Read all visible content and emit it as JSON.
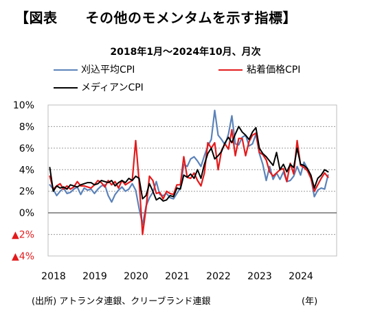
{
  "header": {
    "title": "【図表　　その他のモメンタムを示す指標】",
    "subtitle": "2018年1月～2024年10月、月次"
  },
  "footer": {
    "source": "(出所) アトランタ連銀、クリーブランド連銀",
    "unit": "(年)"
  },
  "colors": {
    "trimmed": "#5b82b9",
    "sticky": "#e31a1c",
    "median": "#000000",
    "negative_label": "#e31a1c",
    "grid": "#9a9a9a",
    "zero": "#555555"
  },
  "chart_data": {
    "type": "line",
    "title": "",
    "xlabel": "(年)",
    "ylabel": "",
    "ylim": [
      -4,
      10
    ],
    "yticks": [
      -4,
      -2,
      0,
      2,
      4,
      6,
      8,
      10
    ],
    "ytick_labels": [
      "▲4%",
      "▲2%",
      "0%",
      "2%",
      "4%",
      "6%",
      "8%",
      "10%"
    ],
    "xtick_labels": [
      "2018",
      "2019",
      "2020",
      "2021",
      "2022",
      "2023",
      "2024"
    ],
    "x_start": "2018-01",
    "x_end": "2024-10",
    "grid": true,
    "legend_position": "top",
    "series": [
      {
        "name": "刈込平均CPI",
        "values": [
          2.6,
          2.2,
          1.6,
          2.0,
          2.3,
          1.8,
          1.9,
          2.2,
          2.4,
          1.7,
          2.3,
          2.1,
          2.2,
          1.8,
          2.2,
          2.5,
          2.6,
          1.6,
          1.0,
          1.7,
          2.1,
          2.4,
          2.0,
          2.2,
          2.7,
          2.1,
          0.4,
          -1.1,
          0.6,
          1.4,
          1.9,
          2.9,
          1.7,
          1.6,
          1.8,
          1.4,
          1.3,
          1.8,
          2.3,
          4.5,
          4.3,
          5.0,
          5.2,
          4.8,
          4.3,
          5.3,
          6.2,
          6.8,
          9.5,
          7.2,
          6.8,
          6.3,
          7.3,
          9.0,
          6.4,
          6.3,
          7.0,
          7.2,
          6.2,
          6.4,
          7.3,
          5.5,
          4.5,
          3.0,
          4.3,
          3.1,
          3.7,
          3.1,
          3.8,
          2.9,
          3.0,
          3.4,
          4.3,
          3.5,
          4.7,
          4.1,
          3.3,
          1.5,
          2.1,
          2.3,
          2.2,
          3.5
        ]
      },
      {
        "name": "粘着価格CPI",
        "values": [
          3.4,
          2.2,
          2.5,
          2.7,
          2.2,
          2.5,
          2.2,
          2.4,
          2.9,
          2.5,
          2.5,
          2.4,
          2.3,
          2.6,
          3.0,
          2.8,
          2.4,
          3.0,
          2.6,
          2.9,
          2.3,
          3.0,
          2.6,
          2.8,
          3.0,
          6.7,
          2.9,
          -2.0,
          0.4,
          3.4,
          3.0,
          1.8,
          1.9,
          1.3,
          2.0,
          1.8,
          1.7,
          2.6,
          2.6,
          5.2,
          3.3,
          3.2,
          3.7,
          3.0,
          2.5,
          3.7,
          6.5,
          6.0,
          6.5,
          4.0,
          5.8,
          6.4,
          5.9,
          7.7,
          5.3,
          6.9,
          6.9,
          5.3,
          6.6,
          7.2,
          7.4,
          5.6,
          5.4,
          4.9,
          3.8,
          3.4,
          3.7,
          4.0,
          4.1,
          2.9,
          4.6,
          3.6,
          6.7,
          4.4,
          4.2,
          3.9,
          3.2,
          2.0,
          2.6,
          3.2,
          3.7,
          3.3
        ]
      },
      {
        "name": "メディアンCPI",
        "values": [
          4.2,
          2.0,
          2.5,
          2.3,
          2.4,
          2.2,
          2.6,
          2.5,
          2.4,
          2.6,
          2.7,
          2.8,
          2.8,
          2.6,
          2.7,
          3.0,
          2.9,
          2.8,
          3.0,
          2.5,
          2.8,
          3.0,
          2.8,
          3.2,
          3.0,
          3.4,
          3.2,
          1.3,
          1.6,
          2.7,
          2.0,
          1.2,
          1.4,
          1.1,
          1.2,
          1.6,
          1.5,
          2.3,
          2.2,
          3.5,
          3.3,
          3.6,
          3.2,
          4.0,
          3.2,
          4.5,
          5.5,
          6.0,
          5.0,
          5.3,
          5.7,
          6.5,
          7.0,
          6.5,
          7.3,
          8.0,
          7.5,
          7.2,
          6.8,
          7.5,
          7.9,
          6.0,
          5.5,
          5.2,
          4.8,
          4.4,
          5.6,
          4.0,
          4.5,
          3.8,
          4.5,
          4.2,
          6.0,
          4.5,
          4.4,
          4.1,
          3.5,
          2.3,
          3.2,
          3.5,
          4.0,
          3.8
        ]
      }
    ]
  }
}
